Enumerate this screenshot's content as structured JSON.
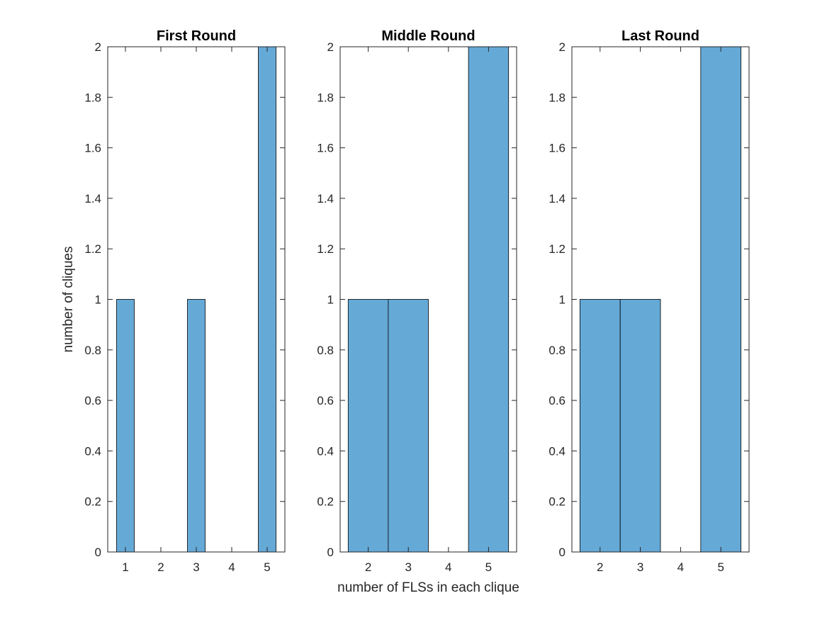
{
  "chart_data": [
    {
      "type": "bar",
      "title": "First Round",
      "categories": [
        "1",
        "2",
        "3",
        "4",
        "5"
      ],
      "xticks": [
        "1",
        "2",
        "3",
        "4",
        "5"
      ],
      "values": [
        1,
        0,
        1,
        0,
        2
      ],
      "ylabel": "number of cliques",
      "xlabel": "",
      "ylim": [
        0,
        2
      ],
      "yticks": [
        "0",
        "0.2",
        "0.4",
        "0.6",
        "0.8",
        "1",
        "1.2",
        "1.4",
        "1.6",
        "1.8",
        "2"
      ],
      "bar_color": "#65a9d7",
      "grid": false
    },
    {
      "type": "bar",
      "title": "Middle Round",
      "categories": [
        "2",
        "3",
        "4",
        "5"
      ],
      "xticks": [
        "2",
        "3",
        "4",
        "5"
      ],
      "values": [
        1,
        1,
        0,
        2
      ],
      "ylabel": "",
      "xlabel": "number of FLSs in each clique",
      "ylim": [
        0,
        2
      ],
      "yticks": [
        "0",
        "0.2",
        "0.4",
        "0.6",
        "0.8",
        "1",
        "1.2",
        "1.4",
        "1.6",
        "1.8",
        "2"
      ],
      "bar_color": "#65a9d7",
      "grid": false
    },
    {
      "type": "bar",
      "title": "Last Round",
      "categories": [
        "2",
        "3",
        "4",
        "5"
      ],
      "xticks": [
        "2",
        "3",
        "4",
        "5"
      ],
      "values": [
        1,
        1,
        0,
        2
      ],
      "ylabel": "",
      "xlabel": "",
      "ylim": [
        0,
        2
      ],
      "yticks": [
        "0",
        "0.2",
        "0.4",
        "0.6",
        "0.8",
        "1",
        "1.2",
        "1.4",
        "1.6",
        "1.8",
        "2"
      ],
      "bar_color": "#65a9d7",
      "grid": false
    }
  ]
}
